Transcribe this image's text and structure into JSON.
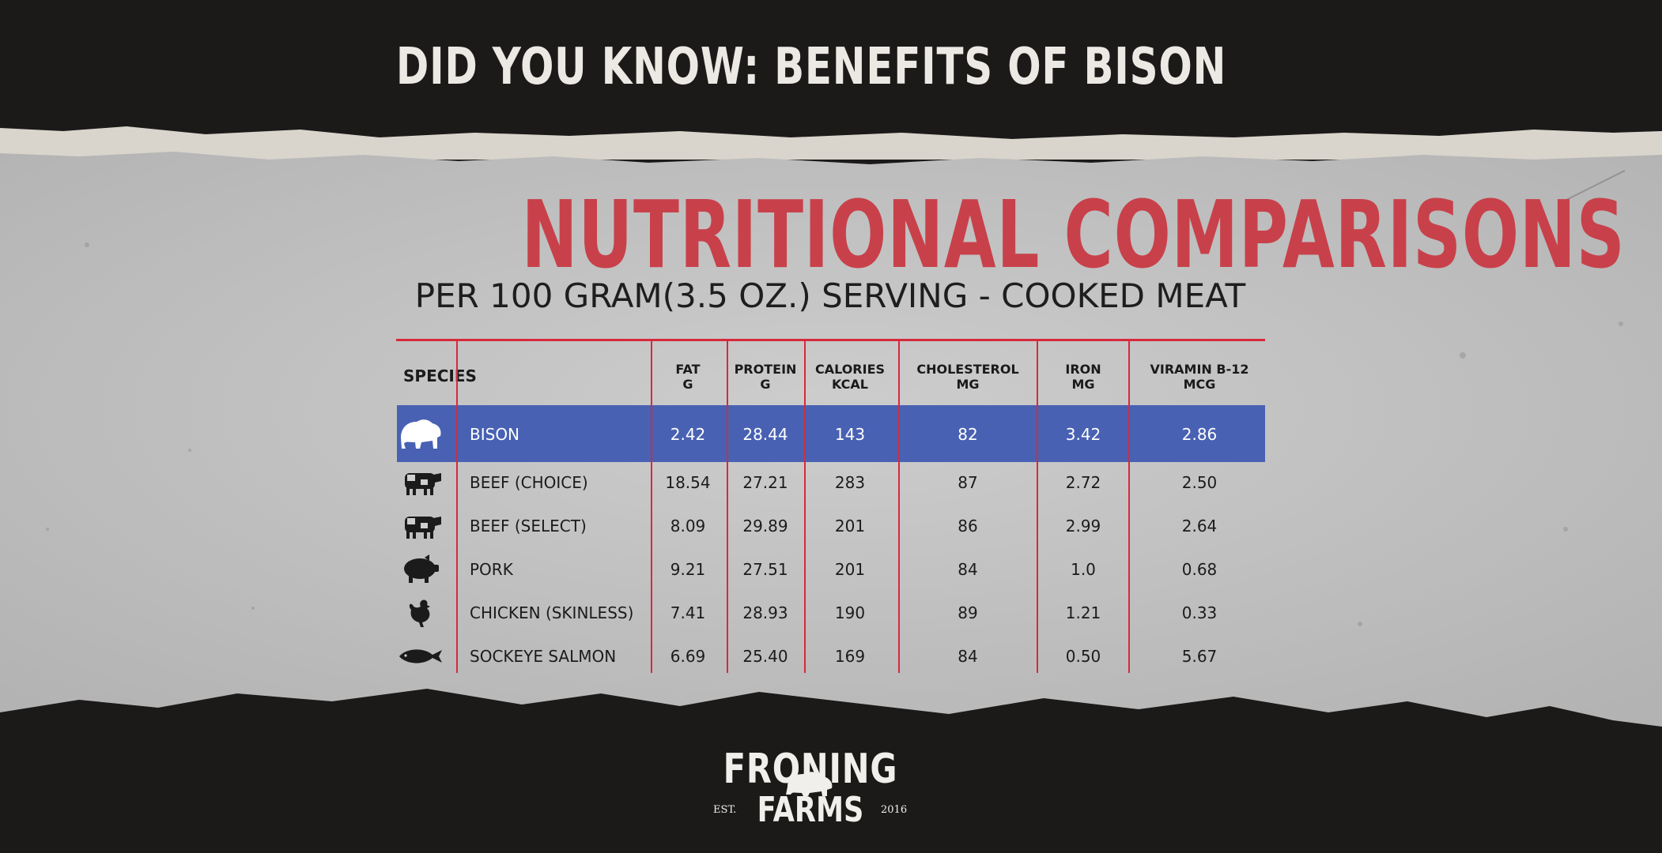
{
  "headline": "DID YOU KNOW: BENEFITS OF BISON",
  "title": "NUTRITIONAL COMPARISONS",
  "subtitle": "PER 100 GRAM(3.5 OZ.) SERVING - COOKED MEAT",
  "table": {
    "species_header": "SPECIES",
    "columns": [
      {
        "name": "FAT",
        "unit": "G"
      },
      {
        "name": "PROTEIN",
        "unit": "G"
      },
      {
        "name": "CALORIES",
        "unit": "KCAL"
      },
      {
        "name": "CHOLESTEROL",
        "unit": "MG"
      },
      {
        "name": "IRON",
        "unit": "MG"
      },
      {
        "name": "VIRAMIN B-12",
        "unit": "MCG"
      }
    ],
    "rows": [
      {
        "species": "BISON",
        "icon": "bison-icon",
        "values": [
          "2.42",
          "28.44",
          "143",
          "82",
          "3.42",
          "2.86"
        ]
      },
      {
        "species": "BEEF (CHOICE)",
        "icon": "cow-icon",
        "values": [
          "18.54",
          "27.21",
          "283",
          "87",
          "2.72",
          "2.50"
        ]
      },
      {
        "species": "BEEF (SELECT)",
        "icon": "cow-icon",
        "values": [
          "8.09",
          "29.89",
          "201",
          "86",
          "2.99",
          "2.64"
        ]
      },
      {
        "species": "PORK",
        "icon": "pig-icon",
        "values": [
          "9.21",
          "27.51",
          "201",
          "84",
          "1.0",
          "0.68"
        ]
      },
      {
        "species": "CHICKEN (SKINLESS)",
        "icon": "chicken-icon",
        "values": [
          "7.41",
          "28.93",
          "190",
          "89",
          "1.21",
          "0.33"
        ]
      },
      {
        "species": "SOCKEYE SALMON",
        "icon": "fish-icon",
        "values": [
          "6.69",
          "25.40",
          "169",
          "84",
          "0.50",
          "5.67"
        ]
      }
    ],
    "highlight_color": "#4861b3",
    "rule_color": "#d62a3c"
  },
  "logo": {
    "top": "FRONING",
    "bottom": "FARMS",
    "est": "EST.",
    "year": "2016"
  },
  "colors": {
    "background": "#1c1a19",
    "paper": "#c4c4c4",
    "title": "#c8414a"
  }
}
